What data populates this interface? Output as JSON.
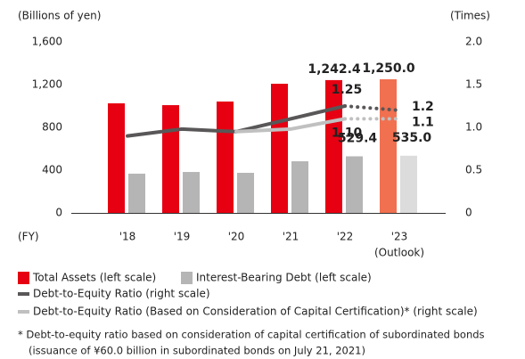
{
  "chart_data": {
    "type": "bar",
    "y_axis_label": "(Billions of yen)",
    "y2_axis_label": "(Times)",
    "x_axis_label": "(FY)",
    "categories": [
      "'18",
      "'19",
      "'20",
      "'21",
      "'22",
      "'23"
    ],
    "category_notes": [
      null,
      null,
      null,
      null,
      null,
      "(Outlook)"
    ],
    "ylim": [
      0,
      1600
    ],
    "yticks": [
      0,
      400,
      800,
      {
        "value": 1200,
        "label": "1,200"
      },
      {
        "value": 1600,
        "label": "1,600"
      }
    ],
    "y2lim": [
      0,
      2.0
    ],
    "y2ticks": [
      0,
      0.5,
      {
        "value": 1.0,
        "label": "1.0"
      },
      1.5,
      {
        "value": 2.0,
        "label": "2.0"
      }
    ],
    "series": [
      {
        "name": "Total Assets (left scale)",
        "type": "bar",
        "color": "#e60012",
        "point_colors": [
          null,
          null,
          null,
          null,
          null,
          "#f07050"
        ],
        "values": [
          1025,
          1008,
          1042,
          1208,
          1242.4,
          1250.0
        ],
        "value_labels": [
          null,
          null,
          null,
          null,
          "1,242.4",
          "1,250.0"
        ]
      },
      {
        "name": "Interest-Bearing Debt (left scale)",
        "type": "bar",
        "color": "#b5b5b5",
        "point_colors": [
          null,
          null,
          null,
          null,
          null,
          "#dcdcdc"
        ],
        "values": [
          367,
          383,
          375,
          483,
          529.4,
          535.0
        ],
        "value_labels": [
          null,
          null,
          null,
          null,
          "529.4",
          "535.0"
        ]
      },
      {
        "name": "Debt-to-Equity Ratio (right scale)",
        "type": "line",
        "axis": "y2",
        "color": "#595757",
        "dashed_last_segment": true,
        "values": [
          0.9,
          0.98,
          0.95,
          1.1,
          1.25,
          1.2
        ],
        "value_labels": [
          null,
          null,
          null,
          null,
          "1.25",
          "1.2"
        ]
      },
      {
        "name": "Debt-to-Equity Ratio (Based on Consideration of Capital Certification)* (right scale)",
        "type": "line",
        "axis": "y2",
        "color": "#c0c0c0",
        "dashed_last_segment": true,
        "values": [
          null,
          null,
          0.95,
          0.98,
          1.1,
          1.1
        ],
        "value_labels": [
          null,
          null,
          null,
          null,
          "1.10",
          "1.1"
        ]
      }
    ],
    "footnote": [
      "* Debt-to-equity ratio based on consideration of capital certification of subordinated bonds",
      "(issuance of ¥60.0 billion in subordinated bonds on July 21, 2021)"
    ]
  }
}
